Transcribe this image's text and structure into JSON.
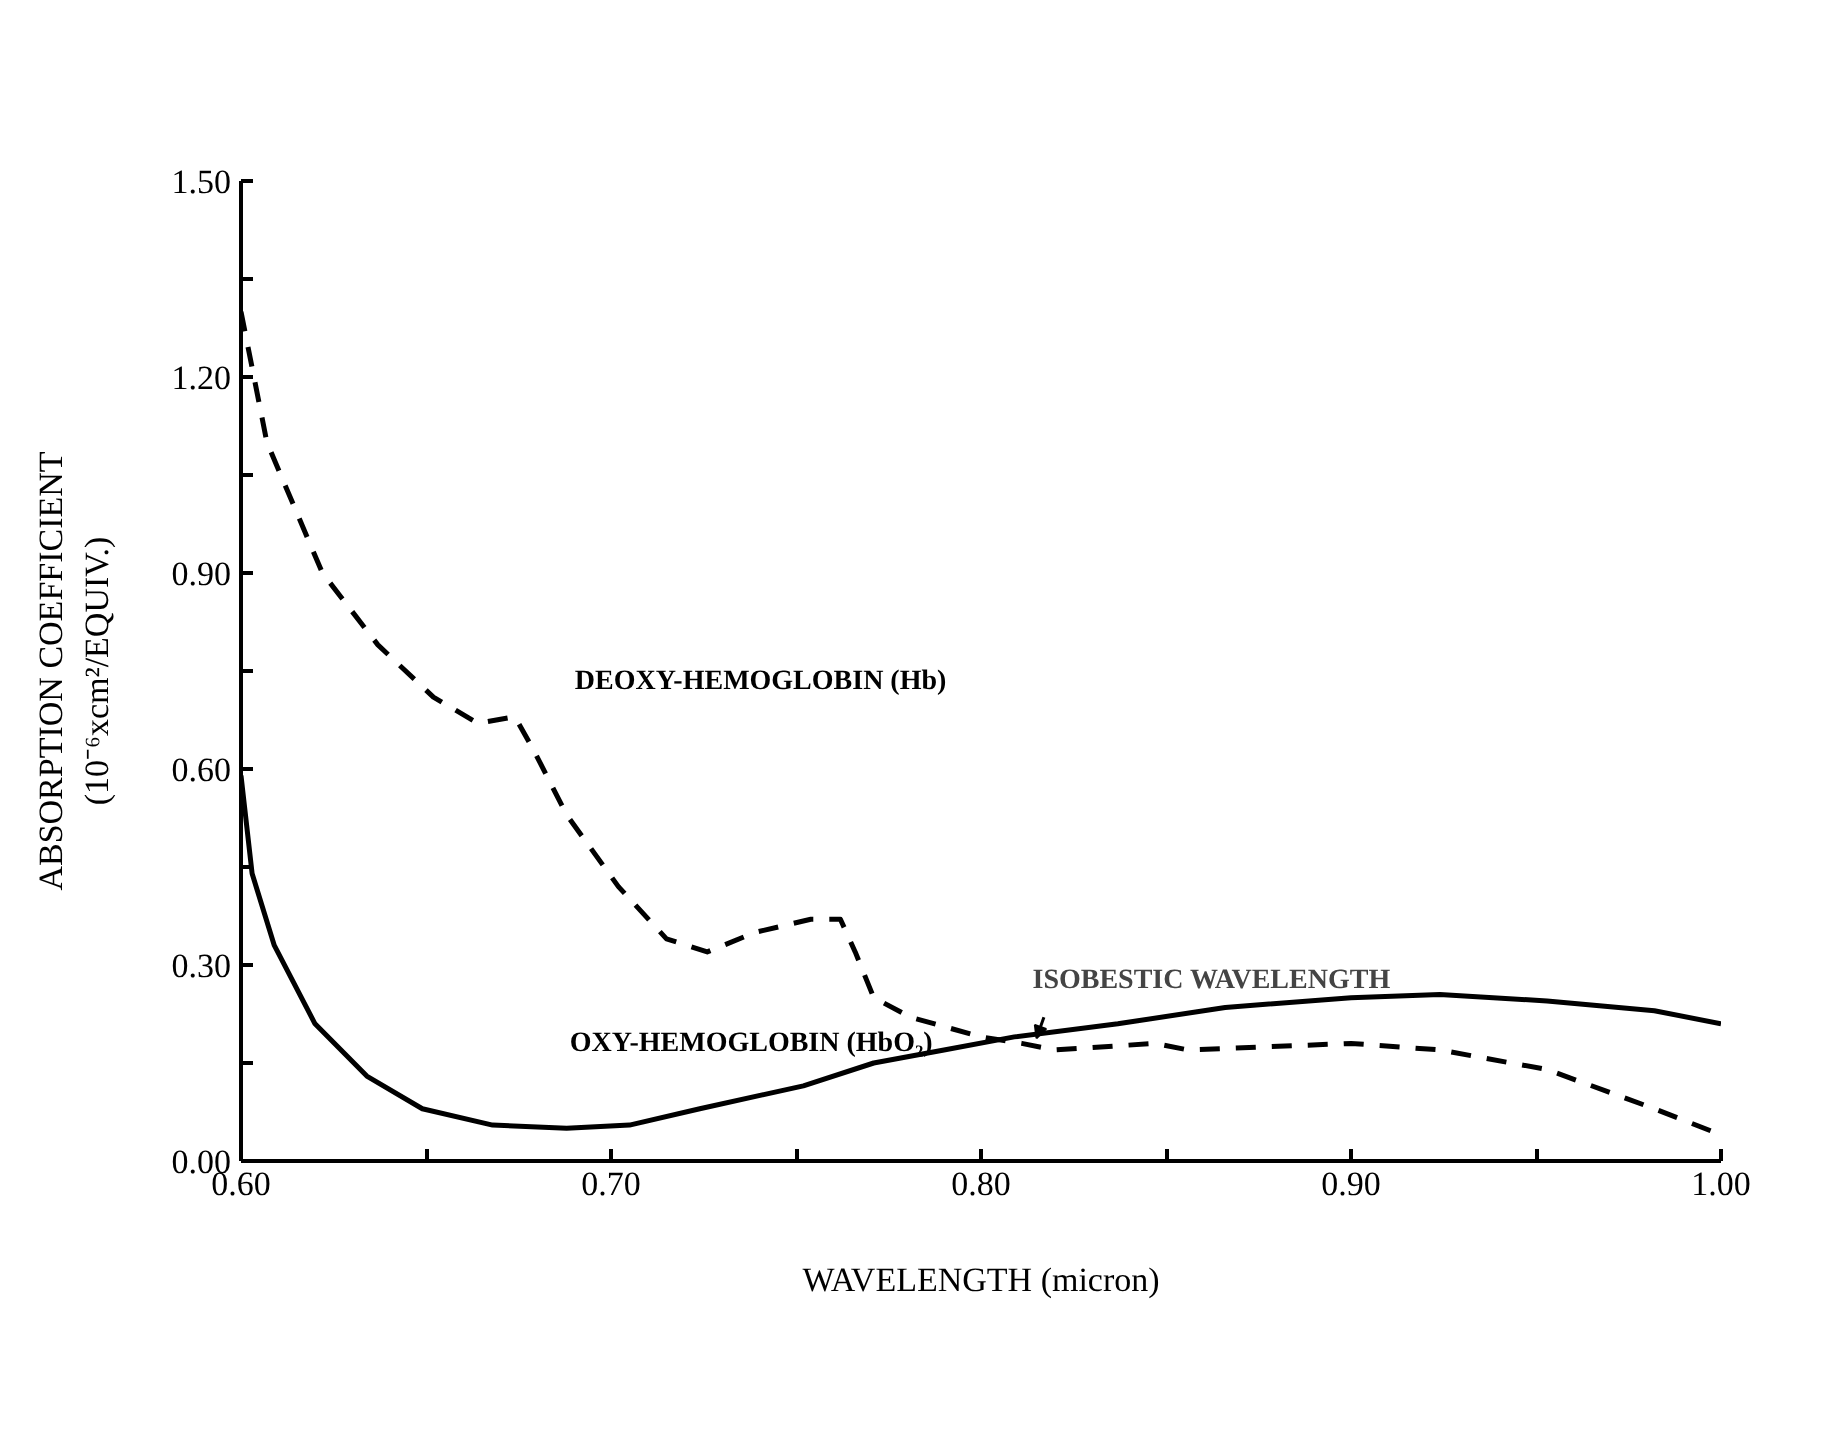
{
  "chart_data": {
    "type": "line",
    "xlabel": "WAVELENGTH (micron)",
    "ylabel": "ABSORPTION COEFFICIENT\n(10⁻⁶xcm²/EQUIV.)",
    "xlim": [
      0.6,
      1.0
    ],
    "ylim": [
      0.0,
      1.5
    ],
    "xticks": [
      {
        "value": 0.6,
        "label": "0.60"
      },
      {
        "value": 0.65,
        "label": null
      },
      {
        "value": 0.7,
        "label": "0.70"
      },
      {
        "value": 0.75,
        "label": null
      },
      {
        "value": 0.8,
        "label": "0.80"
      },
      {
        "value": 0.85,
        "label": null
      },
      {
        "value": 0.9,
        "label": "0.90"
      },
      {
        "value": 0.95,
        "label": null
      },
      {
        "value": 1.0,
        "label": "1.00"
      }
    ],
    "yticks": [
      {
        "value": 0.0,
        "label": "0.00"
      },
      {
        "value": 0.15,
        "label": null
      },
      {
        "value": 0.3,
        "label": "0.30"
      },
      {
        "value": 0.45,
        "label": null
      },
      {
        "value": 0.6,
        "label": "0.60"
      },
      {
        "value": 0.75,
        "label": null
      },
      {
        "value": 0.9,
        "label": "0.90"
      },
      {
        "value": 1.05,
        "label": null
      },
      {
        "value": 1.2,
        "label": "1.20"
      },
      {
        "value": 1.35,
        "label": null
      },
      {
        "value": 1.5,
        "label": "1.50"
      }
    ],
    "grid": false,
    "marker": "none",
    "series": [
      {
        "name": "DEOXY-HEMOGLOBIN (Hb)",
        "color": "#000000",
        "line_style": "dashed",
        "x": [
          0.6,
          0.607,
          0.622,
          0.637,
          0.652,
          0.664,
          0.674,
          0.679,
          0.688,
          0.702,
          0.715,
          0.726,
          0.739,
          0.754,
          0.762,
          0.766,
          0.771,
          0.781,
          0.8,
          0.811,
          0.82,
          0.847,
          0.856,
          0.9,
          0.924,
          0.953,
          0.982,
          1.0
        ],
        "values": [
          1.3,
          1.1,
          0.9,
          0.79,
          0.71,
          0.67,
          0.68,
          0.63,
          0.53,
          0.42,
          0.34,
          0.32,
          0.35,
          0.37,
          0.37,
          0.32,
          0.25,
          0.22,
          0.19,
          0.18,
          0.17,
          0.18,
          0.17,
          0.18,
          0.17,
          0.14,
          0.08,
          0.04
        ]
      },
      {
        "name": "OXY-HEMOGLOBIN (HbO₂)",
        "color": "#000000",
        "line_style": "solid",
        "x": [
          0.6,
          0.603,
          0.609,
          0.62,
          0.634,
          0.649,
          0.668,
          0.688,
          0.705,
          0.724,
          0.752,
          0.771,
          0.79,
          0.809,
          0.837,
          0.866,
          0.9,
          0.924,
          0.953,
          0.982,
          1.0
        ],
        "values": [
          0.59,
          0.44,
          0.33,
          0.21,
          0.13,
          0.08,
          0.055,
          0.05,
          0.055,
          0.08,
          0.115,
          0.15,
          0.17,
          0.19,
          0.21,
          0.235,
          0.25,
          0.255,
          0.245,
          0.23,
          0.21
        ]
      }
    ],
    "annotations": [
      {
        "text": "ISOBESTIC WAVELENGTH",
        "x": 0.815,
        "y": 0.185
      }
    ]
  }
}
